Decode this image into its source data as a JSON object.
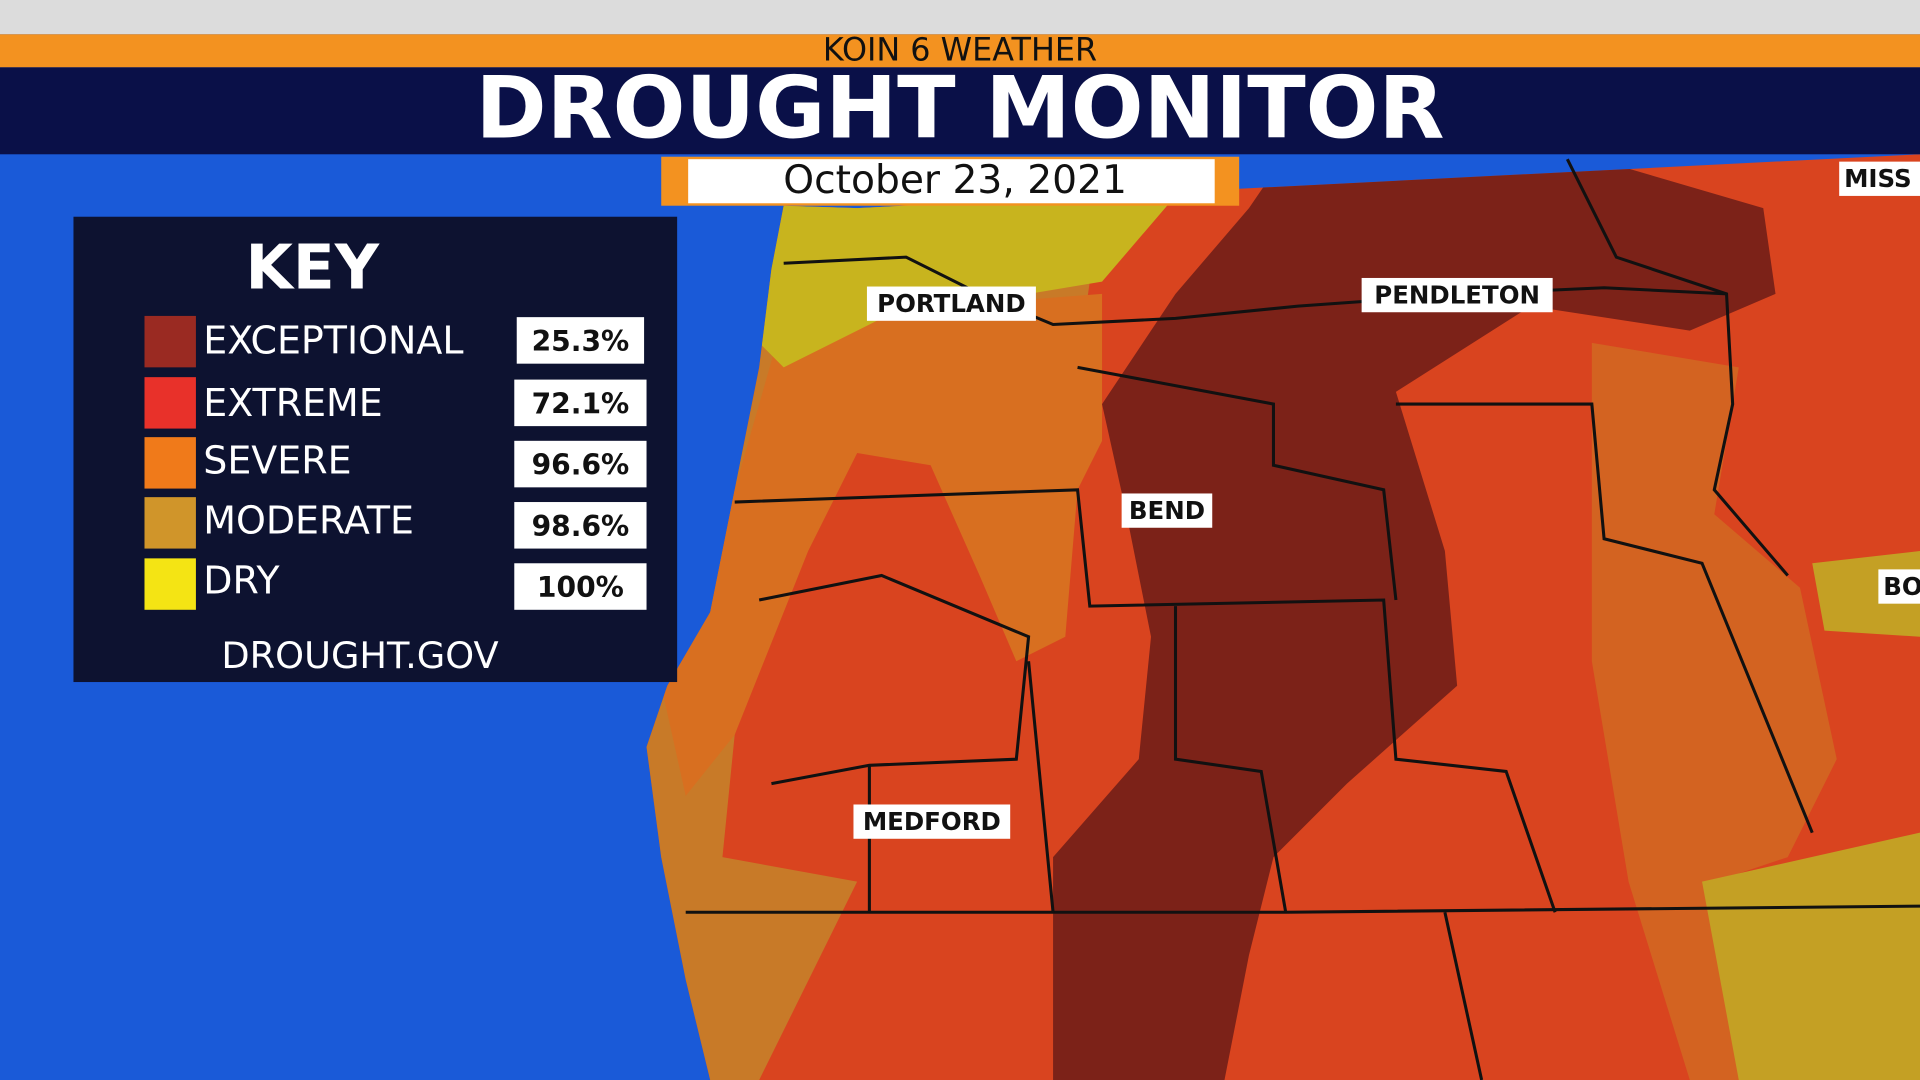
{
  "header": {
    "network": "KOIN 6 WEATHER",
    "title": "DROUGHT MONITOR",
    "date": "October 23, 2021"
  },
  "key": {
    "title": "KEY",
    "rows": [
      {
        "label": "EXCEPTIONAL",
        "percent": "25.3%"
      },
      {
        "label": "EXTREME",
        "percent": "72.1%"
      },
      {
        "label": "SEVERE",
        "percent": "96.6%"
      },
      {
        "label": "MODERATE",
        "percent": "98.6%"
      },
      {
        "label": "DRY",
        "percent": "100%"
      }
    ],
    "source": "DROUGHT.GOV"
  },
  "cities": [
    "PORTLAND",
    "PENDLETON",
    "BEND",
    "MEDFORD",
    "MISS",
    "BO"
  ]
}
